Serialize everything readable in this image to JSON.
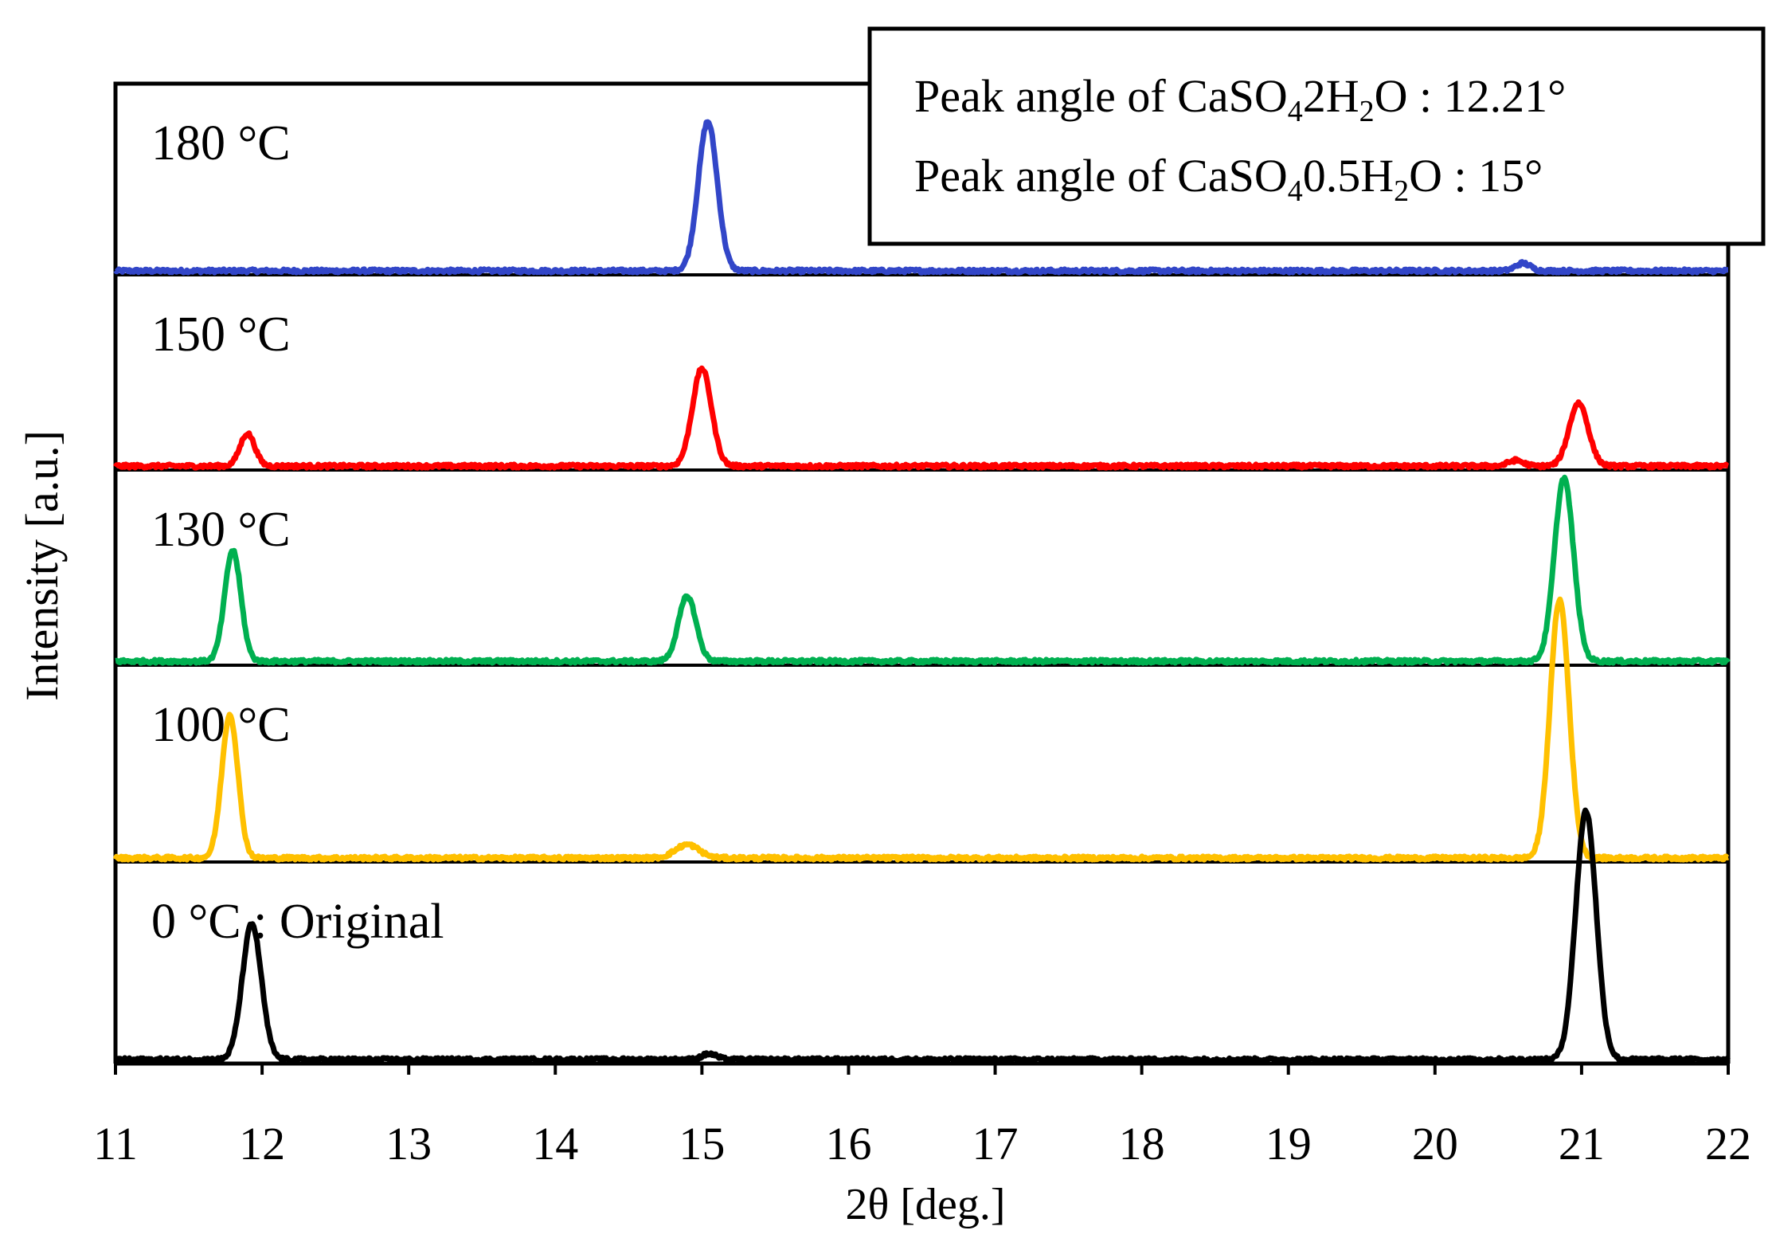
{
  "chart_data": {
    "type": "line",
    "xlabel": "2θ [deg.]",
    "ylabel": "Intensity  [a.u.]",
    "xlim": [
      11,
      22
    ],
    "x_ticks": [
      11,
      12,
      13,
      14,
      15,
      16,
      17,
      18,
      19,
      20,
      21,
      22
    ],
    "grid": false,
    "legend": {
      "position": "top-right",
      "lines": [
        {
          "prefix": "Peak angle of CaSO",
          "sub1": "4",
          "mid": "2H",
          "sub2": "2",
          "suffix": "O : 12.21°"
        },
        {
          "prefix": "Peak angle of CaSO",
          "sub1": "4",
          "mid": "0.5H",
          "sub2": "2",
          "suffix": "O : 15°"
        }
      ]
    },
    "series": [
      {
        "name": "180 °C",
        "color": "#3246c8",
        "peaks": [
          {
            "x": 15.04,
            "h": 0.78,
            "w": 0.065
          },
          {
            "x": 20.6,
            "h": 0.04,
            "w": 0.05
          }
        ]
      },
      {
        "name": "150 °C",
        "color": "#ff0000",
        "peaks": [
          {
            "x": 11.9,
            "h": 0.17,
            "w": 0.05
          },
          {
            "x": 15.0,
            "h": 0.51,
            "w": 0.065
          },
          {
            "x": 20.55,
            "h": 0.03,
            "w": 0.05
          },
          {
            "x": 20.98,
            "h": 0.33,
            "w": 0.065
          }
        ]
      },
      {
        "name": "130 °C",
        "color": "#00b050",
        "peaks": [
          {
            "x": 11.8,
            "h": 0.58,
            "w": 0.055
          },
          {
            "x": 14.9,
            "h": 0.34,
            "w": 0.06
          },
          {
            "x": 20.88,
            "h": 0.96,
            "w": 0.065
          }
        ]
      },
      {
        "name": "100 °C",
        "color": "#ffc000",
        "peaks": [
          {
            "x": 11.78,
            "h": 0.75,
            "w": 0.055
          },
          {
            "x": 14.9,
            "h": 0.07,
            "w": 0.08
          },
          {
            "x": 20.85,
            "h": 1.35,
            "w": 0.065
          }
        ]
      },
      {
        "name": "0 °C : Original",
        "color": "#000000",
        "peaks": [
          {
            "x": 11.93,
            "h": 0.71,
            "w": 0.065
          },
          {
            "x": 15.05,
            "h": 0.03,
            "w": 0.05
          },
          {
            "x": 21.03,
            "h": 1.3,
            "w": 0.07
          }
        ]
      }
    ]
  }
}
